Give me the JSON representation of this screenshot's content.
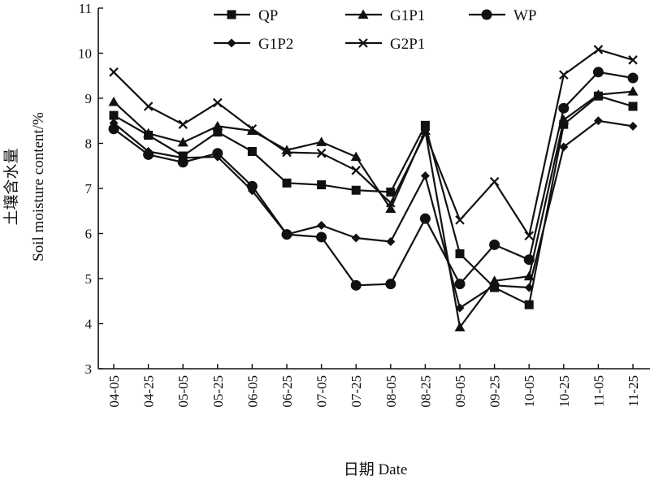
{
  "chart_data": {
    "type": "line",
    "title": "",
    "xlabel": "日期 Date",
    "ylabel_cn": "土壤含水量",
    "ylabel_en": "Soil moisture content/%",
    "ylim": [
      3,
      11
    ],
    "yticks": [
      "3",
      "4",
      "5",
      "6",
      "7",
      "8",
      "9",
      "10",
      "11"
    ],
    "grid": false,
    "legend_position": "top",
    "categories": [
      "04-05",
      "04-25",
      "05-05",
      "05-25",
      "06-05",
      "06-25",
      "07-05",
      "07-25",
      "08-05",
      "08-25",
      "09-05",
      "09-25",
      "10-05",
      "10-25",
      "11-05",
      "11-25"
    ],
    "series": [
      {
        "name": "QP",
        "marker": "square",
        "values": [
          8.62,
          8.18,
          7.72,
          8.25,
          7.82,
          7.12,
          7.08,
          6.96,
          6.92,
          8.4,
          5.55,
          4.8,
          4.42,
          8.42,
          9.05,
          8.82
        ]
      },
      {
        "name": "G1P1",
        "marker": "triangle",
        "values": [
          8.92,
          8.22,
          8.02,
          8.38,
          8.28,
          7.85,
          8.03,
          7.7,
          6.55,
          8.28,
          3.92,
          4.95,
          5.05,
          8.52,
          9.08,
          9.15
        ]
      },
      {
        "name": "WP",
        "marker": "circle",
        "values": [
          8.32,
          7.75,
          7.58,
          7.78,
          7.05,
          5.98,
          5.92,
          4.85,
          4.88,
          6.33,
          4.88,
          5.75,
          5.42,
          8.78,
          9.58,
          9.45
        ]
      },
      {
        "name": "G1P2",
        "marker": "diamond",
        "values": [
          8.45,
          7.82,
          7.68,
          7.7,
          6.95,
          5.98,
          6.18,
          5.9,
          5.82,
          7.28,
          4.35,
          4.85,
          4.8,
          7.92,
          8.5,
          8.38
        ]
      },
      {
        "name": "G2P1",
        "marker": "cross",
        "values": [
          9.58,
          8.82,
          8.42,
          8.9,
          8.32,
          7.8,
          7.78,
          7.4,
          6.68,
          8.22,
          6.3,
          7.15,
          5.95,
          9.52,
          10.08,
          9.85
        ]
      }
    ]
  }
}
